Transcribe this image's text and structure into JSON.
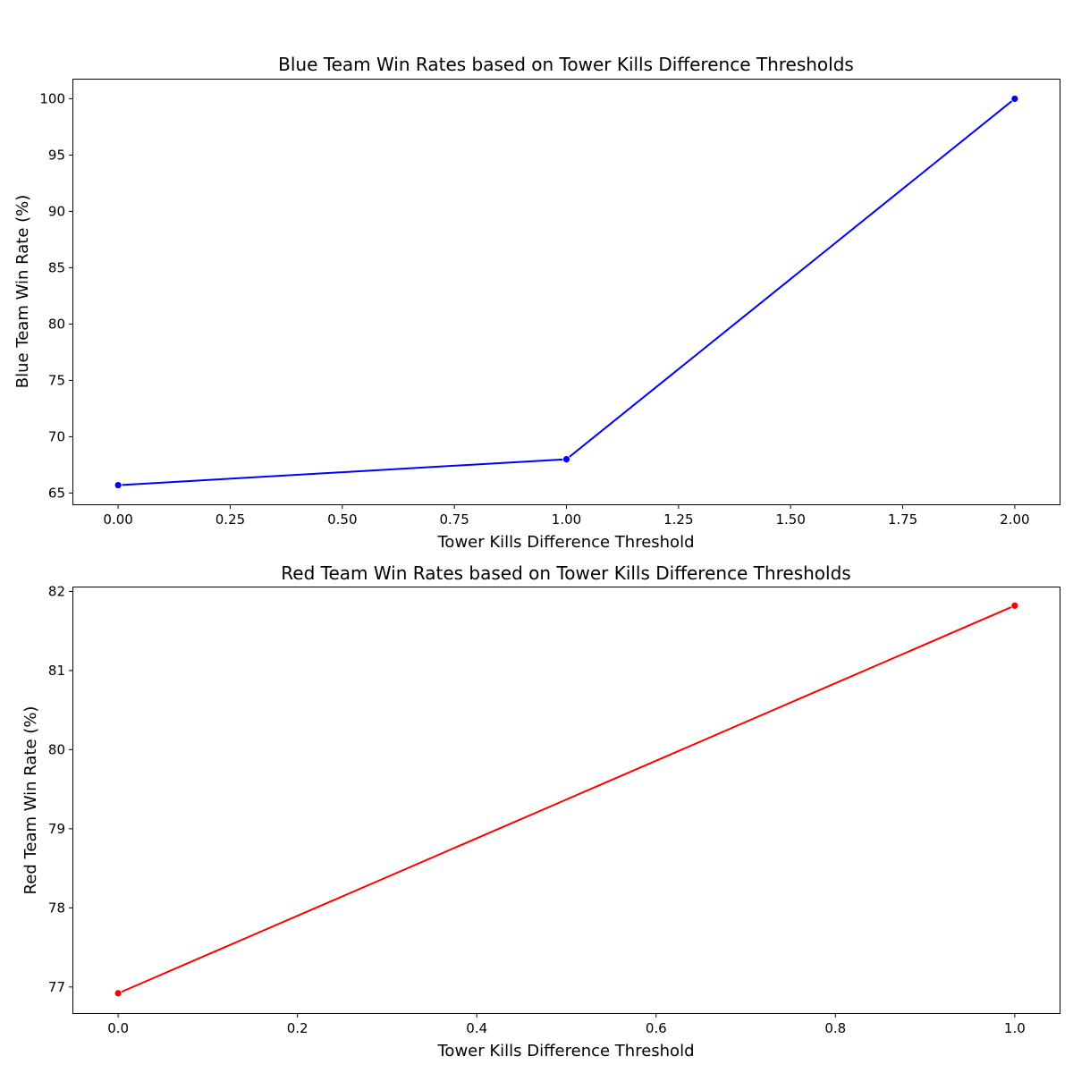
{
  "chart_data": [
    {
      "type": "line",
      "title": "Blue Team Win Rates based on Tower Kills Difference Thresholds",
      "xlabel": "Tower Kills Difference Threshold",
      "ylabel": "Blue Team Win Rate (%)",
      "xlim": [
        -0.1,
        2.1
      ],
      "ylim": [
        64.0,
        101.7
      ],
      "xticks": [
        0.0,
        0.25,
        0.5,
        0.75,
        1.0,
        1.25,
        1.5,
        1.75,
        2.0
      ],
      "xtick_labels": [
        "0.00",
        "0.25",
        "0.50",
        "0.75",
        "1.00",
        "1.25",
        "1.50",
        "1.75",
        "2.00"
      ],
      "yticks": [
        65,
        70,
        75,
        80,
        85,
        90,
        95,
        100
      ],
      "ytick_labels": [
        "65",
        "70",
        "75",
        "80",
        "85",
        "90",
        "95",
        "100"
      ],
      "grid": false,
      "series": [
        {
          "color": "#0000ff",
          "marker": "circle",
          "x": [
            0,
            1,
            2
          ],
          "y": [
            65.7,
            68.0,
            100.0
          ]
        }
      ]
    },
    {
      "type": "line",
      "title": "Red Team Win Rates based on Tower Kills Difference Thresholds",
      "xlabel": "Tower Kills Difference Threshold",
      "ylabel": "Red Team Win Rate (%)",
      "xlim": [
        -0.05,
        1.05
      ],
      "ylim": [
        76.67,
        82.05
      ],
      "xticks": [
        0.0,
        0.2,
        0.4,
        0.6,
        0.8,
        1.0
      ],
      "xtick_labels": [
        "0.0",
        "0.2",
        "0.4",
        "0.6",
        "0.8",
        "1.0"
      ],
      "yticks": [
        77,
        78,
        79,
        80,
        81,
        82
      ],
      "ytick_labels": [
        "77",
        "78",
        "79",
        "80",
        "81",
        "82"
      ],
      "grid": false,
      "series": [
        {
          "color": "#ff0000",
          "marker": "circle",
          "x": [
            0,
            1
          ],
          "y": [
            76.92,
            81.82
          ]
        }
      ]
    }
  ]
}
